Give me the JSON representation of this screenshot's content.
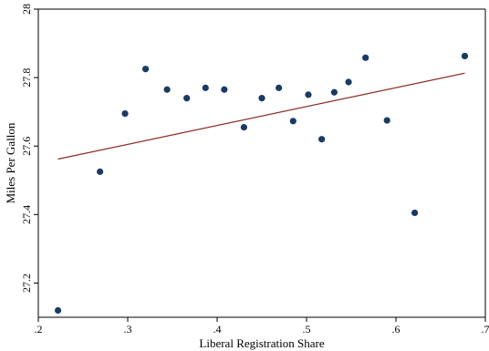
{
  "chart_data": {
    "type": "scatter",
    "xlabel": "Liberal Registration Share",
    "ylabel": "Miles Per Gallon",
    "xlim": [
      0.2,
      0.7
    ],
    "ylim": [
      27.1,
      28.0
    ],
    "x_ticks": [
      0.2,
      0.3,
      0.4,
      0.5,
      0.6,
      0.7
    ],
    "x_tick_labels": [
      ".2",
      ".3",
      ".4",
      ".5",
      ".6",
      ".7"
    ],
    "y_ticks": [
      27.2,
      27.4,
      27.6,
      27.8,
      28.0
    ],
    "y_tick_labels": [
      "27.2",
      "27.4",
      "27.6",
      "27.8",
      "28"
    ],
    "grid": false,
    "legend": "none",
    "series": [
      {
        "type": "scatter",
        "color": "#1a3a63",
        "points": [
          {
            "x": 0.222,
            "y": 27.12
          },
          {
            "x": 0.269,
            "y": 27.525
          },
          {
            "x": 0.297,
            "y": 27.695
          },
          {
            "x": 0.32,
            "y": 27.825
          },
          {
            "x": 0.344,
            "y": 27.765
          },
          {
            "x": 0.366,
            "y": 27.74
          },
          {
            "x": 0.387,
            "y": 27.77
          },
          {
            "x": 0.408,
            "y": 27.765
          },
          {
            "x": 0.43,
            "y": 27.655
          },
          {
            "x": 0.45,
            "y": 27.74
          },
          {
            "x": 0.469,
            "y": 27.77
          },
          {
            "x": 0.485,
            "y": 27.673
          },
          {
            "x": 0.502,
            "y": 27.75
          },
          {
            "x": 0.517,
            "y": 27.62
          },
          {
            "x": 0.531,
            "y": 27.757
          },
          {
            "x": 0.547,
            "y": 27.787
          },
          {
            "x": 0.566,
            "y": 27.858
          },
          {
            "x": 0.59,
            "y": 27.675
          },
          {
            "x": 0.621,
            "y": 27.405
          },
          {
            "x": 0.677,
            "y": 27.863
          }
        ]
      },
      {
        "type": "line",
        "color": "#8b2a2a",
        "points": [
          {
            "x": 0.222,
            "y": 27.562
          },
          {
            "x": 0.677,
            "y": 27.813
          }
        ]
      }
    ]
  }
}
